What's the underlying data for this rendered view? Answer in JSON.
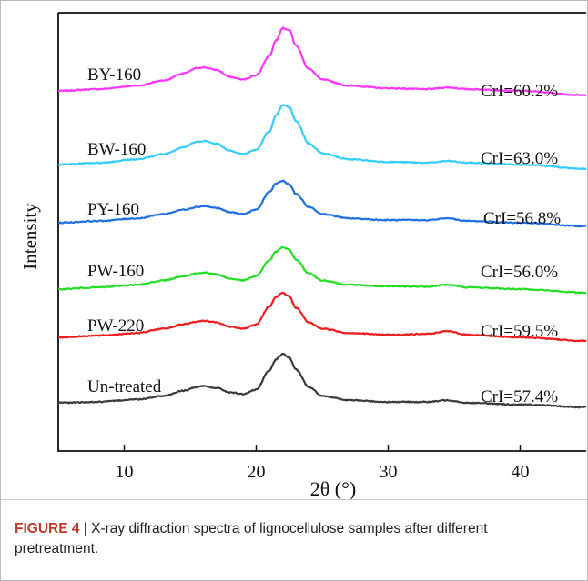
{
  "chart_data": {
    "type": "line",
    "xlabel": "2θ (°)",
    "ylabel": "Intensity",
    "xlim": [
      5,
      45
    ],
    "xticks": [
      10,
      20,
      30,
      40
    ],
    "y_axis_ticks": "none",
    "grid": false,
    "legend": "none (series labelled directly on the curves)",
    "series": [
      {
        "name": "BY-160",
        "annotation": "CrI=60.2%",
        "color": "#ff33ff",
        "x": [
          5,
          8,
          11,
          13,
          14.5,
          15.5,
          16,
          17,
          18,
          19,
          20,
          21,
          21.5,
          22,
          22.5,
          23,
          24,
          25,
          27,
          30,
          33,
          34.5,
          36,
          40,
          45
        ],
        "y": [
          0.0,
          0.02,
          0.06,
          0.12,
          0.2,
          0.26,
          0.27,
          0.24,
          0.16,
          0.13,
          0.18,
          0.4,
          0.58,
          0.72,
          0.7,
          0.52,
          0.25,
          0.13,
          0.06,
          0.03,
          0.02,
          0.04,
          0.02,
          0.0,
          -0.05
        ]
      },
      {
        "name": "BW-160",
        "annotation": "CrI=63.0%",
        "color": "#33ccff",
        "x": [
          5,
          8,
          11,
          13,
          14.5,
          15.5,
          16,
          17,
          18,
          19,
          20,
          21,
          21.5,
          22,
          22.5,
          23,
          24,
          25,
          27,
          30,
          33,
          34.5,
          36,
          40,
          45
        ],
        "y": [
          0.0,
          0.02,
          0.06,
          0.12,
          0.2,
          0.26,
          0.27,
          0.24,
          0.16,
          0.12,
          0.17,
          0.38,
          0.56,
          0.68,
          0.66,
          0.5,
          0.24,
          0.13,
          0.06,
          0.03,
          0.02,
          0.04,
          0.02,
          0.0,
          -0.05
        ]
      },
      {
        "name": "PY-160",
        "annotation": "CrI=56.8%",
        "color": "#1f6fe0",
        "x": [
          5,
          8,
          11,
          13,
          14.5,
          15.5,
          16,
          17,
          18,
          19,
          20,
          21,
          21.5,
          22,
          22.5,
          23,
          24,
          25,
          27,
          30,
          33,
          34.5,
          36,
          40,
          45
        ],
        "y": [
          0.0,
          0.02,
          0.05,
          0.1,
          0.15,
          0.18,
          0.19,
          0.17,
          0.12,
          0.1,
          0.15,
          0.35,
          0.45,
          0.48,
          0.44,
          0.33,
          0.18,
          0.1,
          0.05,
          0.03,
          0.03,
          0.05,
          0.02,
          0.0,
          -0.04
        ]
      },
      {
        "name": "PW-160",
        "annotation": "CrI=56.0%",
        "color": "#22dd22",
        "x": [
          5,
          8,
          11,
          13,
          14.5,
          15.5,
          16,
          17,
          18,
          19,
          20,
          21,
          21.5,
          22,
          22.5,
          23,
          24,
          25,
          27,
          30,
          33,
          34.5,
          36,
          40,
          45
        ],
        "y": [
          0.0,
          0.02,
          0.05,
          0.1,
          0.15,
          0.18,
          0.19,
          0.17,
          0.12,
          0.1,
          0.15,
          0.33,
          0.43,
          0.48,
          0.45,
          0.34,
          0.18,
          0.1,
          0.05,
          0.03,
          0.03,
          0.05,
          0.02,
          0.0,
          -0.04
        ]
      },
      {
        "name": "PW-220",
        "annotation": "CrI=59.5%",
        "color": "#ee1c1c",
        "x": [
          5,
          8,
          11,
          13,
          14.5,
          15.5,
          16,
          17,
          18,
          19,
          20,
          21,
          21.5,
          22,
          22.5,
          23,
          24,
          25,
          27,
          30,
          33,
          34.5,
          36,
          40,
          45
        ],
        "y": [
          0.0,
          0.02,
          0.05,
          0.1,
          0.15,
          0.18,
          0.19,
          0.17,
          0.12,
          0.1,
          0.15,
          0.35,
          0.46,
          0.51,
          0.47,
          0.34,
          0.17,
          0.1,
          0.05,
          0.03,
          0.04,
          0.07,
          0.03,
          0.0,
          -0.04
        ]
      },
      {
        "name": "Un-treated",
        "annotation": "CrI=57.4%",
        "color": "#3a3a3a",
        "x": [
          5,
          8,
          11,
          13,
          14.5,
          15.5,
          16,
          17,
          18,
          19,
          20,
          21,
          21.5,
          22,
          22.5,
          23,
          24,
          25,
          27,
          30,
          33,
          34.5,
          36,
          40,
          45
        ],
        "y": [
          0.0,
          0.01,
          0.04,
          0.08,
          0.14,
          0.18,
          0.19,
          0.17,
          0.12,
          0.1,
          0.15,
          0.37,
          0.5,
          0.56,
          0.52,
          0.38,
          0.18,
          0.08,
          0.03,
          0.01,
          0.01,
          0.03,
          0.0,
          -0.02,
          -0.05
        ]
      }
    ]
  },
  "caption": {
    "figure_label": "FIGURE 4",
    "separator": "|",
    "text": "X-ray diffraction spectra of lignocellulose samples after different pretreatment."
  }
}
